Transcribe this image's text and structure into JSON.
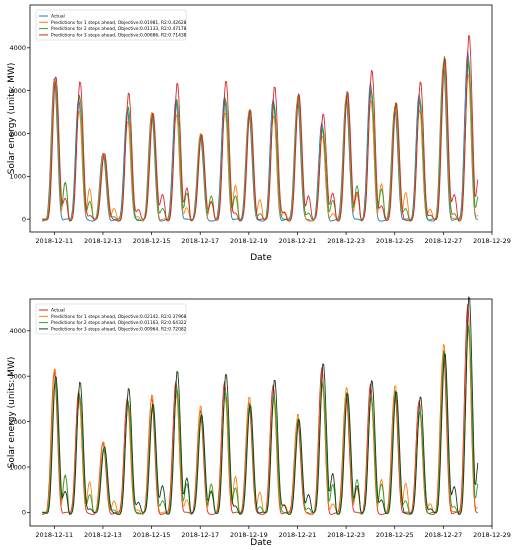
{
  "chart_data": [
    {
      "type": "line",
      "xlabel": "Date",
      "ylabel": "Solar energy (units: MW)",
      "xlim": [
        "2018-12-10",
        "2018-12-29"
      ],
      "ylim": [
        -300,
        5000
      ],
      "x_ticks": [
        "2018-12-11",
        "2018-12-13",
        "2018-12-15",
        "2018-12-17",
        "2018-12-19",
        "2018-12-21",
        "2018-12-23",
        "2018-12-25",
        "2018-12-27",
        "2018-12-29"
      ],
      "y_ticks": [
        0,
        1000,
        2000,
        3000,
        4000
      ],
      "legend_position": "top-left",
      "daily_peaks": {
        "x": [
          "2018-12-11",
          "2018-12-12",
          "2018-12-13",
          "2018-12-14",
          "2018-12-15",
          "2018-12-16",
          "2018-12-17",
          "2018-12-18",
          "2018-12-19",
          "2018-12-20",
          "2018-12-21",
          "2018-12-22",
          "2018-12-23",
          "2018-12-24",
          "2018-12-25",
          "2018-12-26",
          "2018-12-27",
          "2018-12-28"
        ],
        "actual": [
          3300,
          2850,
          1550,
          2600,
          2500,
          2800,
          2000,
          2850,
          2550,
          2750,
          2900,
          2200,
          2950,
          3100,
          2700,
          2850,
          3750,
          3800
        ]
      },
      "series": [
        {
          "name": "Actual",
          "color": "#1f77b4",
          "peak_scale": 1.0
        },
        {
          "name": "Predictions for 1 steps ahead, Objective:0.01981, R2:0.42628",
          "color": "#ff7f0e",
          "peak_scale": 0.95
        },
        {
          "name": "Predictions for 2 steps ahead, Objective:0.01133, R2:0.47178",
          "color": "#2ca02c",
          "peak_scale": 1.0
        },
        {
          "name": "Predictions for 3 steps ahead, Objective:0.00686, R2:0.71438",
          "color": "#d62728",
          "peak_scale": 1.08
        }
      ]
    },
    {
      "type": "line",
      "xlabel": "Date",
      "ylabel": "Solar energy (units: MW)",
      "xlim": [
        "2018-12-10",
        "2018-12-29"
      ],
      "ylim": [
        -300,
        4700
      ],
      "x_ticks": [
        "2018-12-11",
        "2018-12-13",
        "2018-12-15",
        "2018-12-17",
        "2018-12-19",
        "2018-12-21",
        "2018-12-23",
        "2018-12-25",
        "2018-12-27",
        "2018-12-29"
      ],
      "y_ticks": [
        0,
        1000,
        2000,
        3000,
        4000
      ],
      "legend_position": "top-left",
      "daily_peaks": {
        "x": [
          "2018-12-11",
          "2018-12-12",
          "2018-12-13",
          "2018-12-14",
          "2018-12-15",
          "2018-12-16",
          "2018-12-17",
          "2018-12-18",
          "2018-12-19",
          "2018-12-20",
          "2018-12-21",
          "2018-12-22",
          "2018-12-23",
          "2018-12-24",
          "2018-12-25",
          "2018-12-26",
          "2018-12-27",
          "2018-12-28"
        ],
        "actual": [
          3150,
          2700,
          1550,
          2550,
          2550,
          2900,
          2300,
          2850,
          2500,
          2750,
          2150,
          3100,
          2750,
          2750,
          2800,
          2400,
          3700,
          4450
        ]
      },
      "series": [
        {
          "name": "Actual",
          "color": "#d62728",
          "peak_scale": 1.0
        },
        {
          "name": "Predictions for 1 steps ahead, Objective:0.02142, R2:0.37968",
          "color": "#ff7f0e",
          "peak_scale": 0.97
        },
        {
          "name": "Predictions for 2 steps ahead, Objective:0.01163, R2:0.64322",
          "color": "#2ca02c",
          "peak_scale": 0.95
        },
        {
          "name": "Predictions for 3 steps ahead, Objective:0.00964, R2:0.72082",
          "color": "#1a3a12",
          "peak_scale": 1.02
        }
      ]
    }
  ]
}
